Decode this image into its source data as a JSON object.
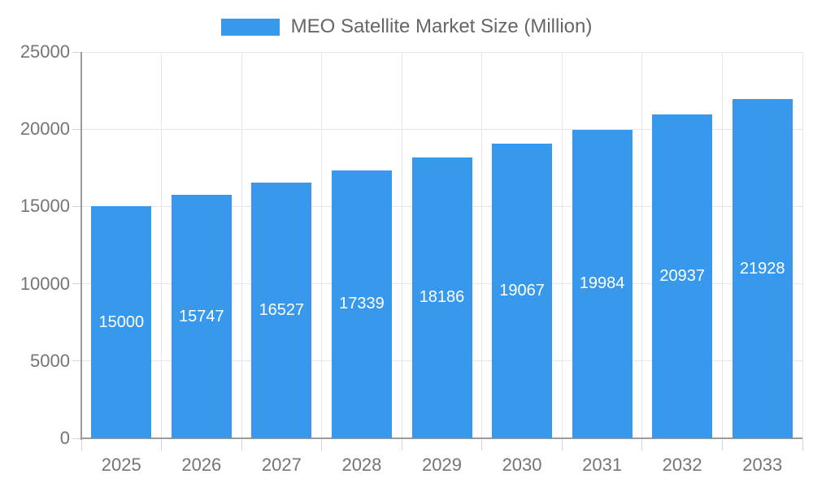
{
  "legend": {
    "label": "MEO Satellite Market Size (Million)"
  },
  "colors": {
    "bar": "#3899EC",
    "axis_line": "#9b9b9b",
    "gridline": "#e6e6e6",
    "tick_mark": "#d4d4d4",
    "tick_label": "#757575",
    "legend_text": "#666666",
    "value_label": "#ffffff",
    "background": "#ffffff"
  },
  "chart_data": {
    "type": "bar",
    "title": "MEO Satellite Market Size (Million)",
    "legend_entries": [
      "MEO Satellite Market Size (Million)"
    ],
    "legend_position": "top-center",
    "categories": [
      "2025",
      "2026",
      "2027",
      "2028",
      "2029",
      "2030",
      "2031",
      "2032",
      "2033"
    ],
    "values": [
      15000,
      15747,
      16527,
      17339,
      18186,
      19067,
      19984,
      20937,
      21928
    ],
    "value_labels_shown": [
      "15000",
      "15747",
      "16527",
      "17339",
      "18186",
      "19067",
      "19984",
      "20937",
      "21928"
    ],
    "value_label_position": "inside-center",
    "xlabel": "",
    "ylabel": "",
    "ylim": [
      0,
      25000
    ],
    "yticks": [
      0,
      5000,
      10000,
      15000,
      20000,
      25000
    ],
    "ytick_labels": [
      "0",
      "5000",
      "10000",
      "15000",
      "20000",
      "25000"
    ],
    "grid": true
  }
}
